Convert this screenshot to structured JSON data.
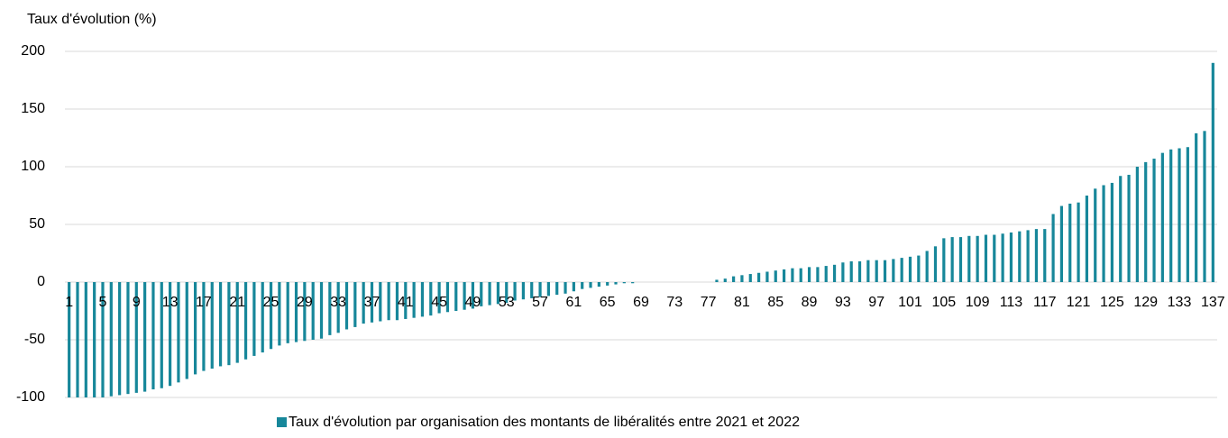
{
  "chart_data": {
    "type": "bar",
    "y_label": "Taux d'évolution (%)",
    "categories": [
      "1",
      null,
      null,
      null,
      "5",
      null,
      null,
      null,
      "9",
      null,
      null,
      null,
      "13",
      null,
      null,
      null,
      "17",
      null,
      null,
      null,
      "21",
      null,
      null,
      null,
      "25",
      null,
      null,
      null,
      "29",
      null,
      null,
      null,
      "33",
      null,
      null,
      null,
      "37",
      null,
      null,
      null,
      "41",
      null,
      null,
      null,
      "45",
      null,
      null,
      null,
      "49",
      null,
      null,
      null,
      "53",
      null,
      null,
      null,
      "57",
      null,
      null,
      null,
      "61",
      null,
      null,
      null,
      "65",
      null,
      null,
      null,
      "69",
      null,
      null,
      null,
      "73",
      null,
      null,
      null,
      "77",
      null,
      null,
      null,
      "81",
      null,
      null,
      null,
      "85",
      null,
      null,
      null,
      "89",
      null,
      null,
      null,
      "93",
      null,
      null,
      null,
      "97",
      null,
      null,
      null,
      "101",
      null,
      null,
      null,
      "105",
      null,
      null,
      null,
      "109",
      null,
      null,
      null,
      "113",
      null,
      null,
      null,
      "117",
      null,
      null,
      null,
      "121",
      null,
      null,
      null,
      "125",
      null,
      null,
      null,
      "129",
      null,
      null,
      null,
      "133",
      null,
      null,
      null,
      "137"
    ],
    "series": [
      {
        "name": "Taux d'évolution par organisation des montants de libéralités entre 2021 et 2022",
        "color": "#17879a",
        "values": [
          -100,
          -100,
          -100,
          -100,
          -100,
          -99,
          -98,
          -97,
          -96,
          -95,
          -93,
          -92,
          -90,
          -87,
          -84,
          -80,
          -77,
          -75,
          -73,
          -72,
          -70,
          -67,
          -64,
          -61,
          -58,
          -55,
          -53,
          -52,
          -51,
          -50,
          -49,
          -46,
          -44,
          -41,
          -39,
          -36,
          -35,
          -34,
          -33,
          -33,
          -32,
          -31,
          -30,
          -29,
          -27,
          -26,
          -25,
          -24,
          -23,
          -21,
          -20,
          -19,
          -18,
          -16,
          -15,
          -14,
          -13,
          -12,
          -11,
          -10,
          -8,
          -6,
          -5,
          -4,
          -3,
          -2,
          -1,
          -1,
          0,
          0,
          0,
          0,
          0,
          0,
          0,
          0,
          0,
          2,
          3,
          5,
          6,
          7,
          8,
          9,
          10,
          11,
          12,
          12,
          13,
          13,
          14,
          15,
          17,
          18,
          18,
          19,
          19,
          19,
          20,
          21,
          22,
          23,
          27,
          31,
          38,
          39,
          39,
          40,
          40,
          41,
          41,
          42,
          43,
          44,
          45,
          46,
          46,
          59,
          66,
          68,
          69,
          75,
          81,
          84,
          86,
          92,
          93,
          100,
          104,
          107,
          112,
          115,
          116,
          117,
          129,
          131,
          190
        ]
      }
    ],
    "ylim": [
      -100,
      200
    ],
    "yticks": [
      -100,
      -50,
      0,
      50,
      100,
      150,
      200
    ],
    "grid": true,
    "legend": "bottom"
  }
}
